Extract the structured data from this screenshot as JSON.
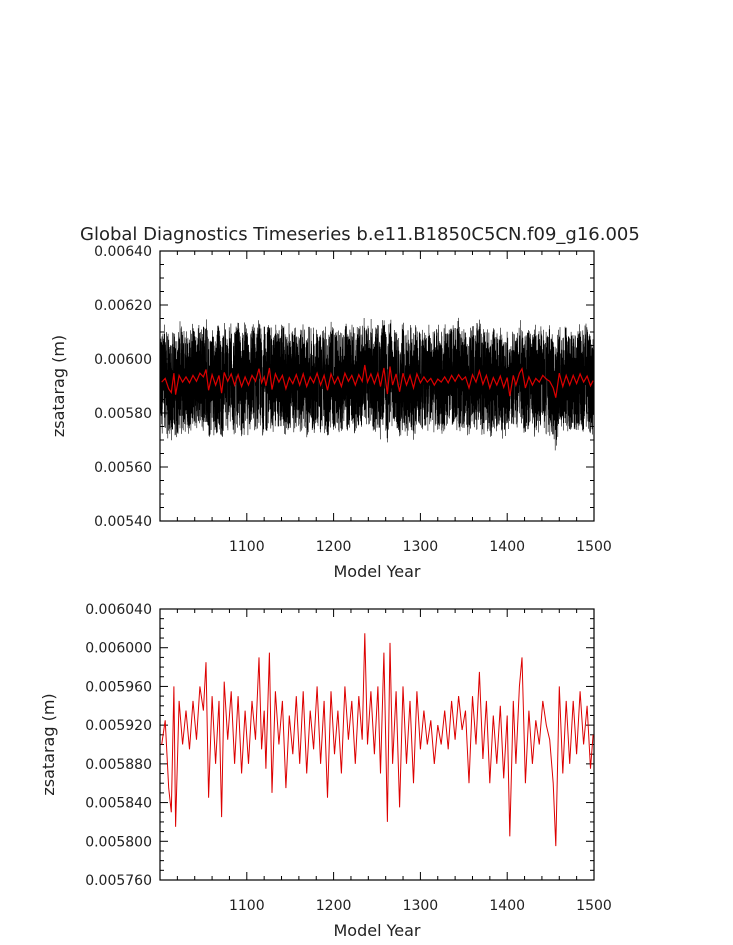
{
  "title": "Global Diagnostics Timeseries b.e11.B1850C5CN.f09_g16.005",
  "colors": {
    "raw": "#000000",
    "smooth": "#dd0000",
    "frame": "#000000"
  },
  "chart_data": [
    {
      "type": "line",
      "title": "Global Diagnostics Timeseries b.e11.B1850C5CN.f09_g16.005",
      "xlabel": "Model Year",
      "ylabel": "zsatarag (m)",
      "xlim": [
        1000,
        1500
      ],
      "ylim": [
        0.0054,
        0.0064
      ],
      "xticks": [
        1100,
        1200,
        1300,
        1400,
        1500
      ],
      "xtick_labels": [
        "1100",
        "1200",
        "1300",
        "1400",
        "1500"
      ],
      "yticks": [
        0.0054,
        0.0056,
        0.0058,
        0.006,
        0.0062,
        0.0064
      ],
      "ytick_labels": [
        "0.00540",
        "0.00560",
        "0.00580",
        "0.00600",
        "0.00620",
        "0.00640"
      ],
      "series": [
        {
          "role": "monthly",
          "color": "#000000",
          "note": "dense black band roughly 0.00570 to 0.00615"
        },
        {
          "role": "annual",
          "color": "#dd0000",
          "source": "annual_x_y"
        }
      ]
    },
    {
      "type": "line",
      "title": "",
      "xlabel": "Model Year",
      "ylabel": "zsatarag (m)",
      "xlim": [
        1000,
        1500
      ],
      "ylim": [
        0.00576,
        0.00604
      ],
      "xticks": [
        1100,
        1200,
        1300,
        1400,
        1500
      ],
      "xtick_labels": [
        "1100",
        "1200",
        "1300",
        "1400",
        "1500"
      ],
      "yticks": [
        0.00576,
        0.0058,
        0.00584,
        0.00588,
        0.00592,
        0.00596,
        0.006,
        0.00604
      ],
      "ytick_labels": [
        "0.005760",
        "0.005800",
        "0.005840",
        "0.005880",
        "0.005920",
        "0.005960",
        "0.006000",
        "0.006040"
      ],
      "series": [
        {
          "role": "annual",
          "color": "#dd0000",
          "source": "annual_x_y"
        }
      ]
    }
  ],
  "annual_x_y": [
    [
      1002,
      0.0059
    ],
    [
      1006,
      0.005925
    ],
    [
      1010,
      0.005855
    ],
    [
      1013,
      0.00583
    ],
    [
      1016,
      0.00596
    ],
    [
      1018,
      0.005815
    ],
    [
      1022,
      0.005945
    ],
    [
      1026,
      0.0059
    ],
    [
      1030,
      0.005935
    ],
    [
      1034,
      0.005895
    ],
    [
      1038,
      0.005945
    ],
    [
      1042,
      0.005905
    ],
    [
      1046,
      0.00596
    ],
    [
      1050,
      0.005935
    ],
    [
      1053,
      0.005985
    ],
    [
      1056,
      0.005845
    ],
    [
      1060,
      0.00595
    ],
    [
      1064,
      0.00588
    ],
    [
      1068,
      0.005945
    ],
    [
      1071,
      0.005825
    ],
    [
      1074,
      0.005965
    ],
    [
      1078,
      0.005905
    ],
    [
      1082,
      0.005955
    ],
    [
      1086,
      0.00588
    ],
    [
      1090,
      0.00595
    ],
    [
      1094,
      0.00587
    ],
    [
      1098,
      0.005935
    ],
    [
      1102,
      0.00588
    ],
    [
      1106,
      0.005945
    ],
    [
      1110,
      0.005905
    ],
    [
      1114,
      0.00599
    ],
    [
      1117,
      0.005895
    ],
    [
      1120,
      0.005935
    ],
    [
      1122,
      0.005875
    ],
    [
      1126,
      0.005995
    ],
    [
      1129,
      0.00585
    ],
    [
      1133,
      0.005955
    ],
    [
      1137,
      0.0059
    ],
    [
      1141,
      0.005945
    ],
    [
      1145,
      0.005855
    ],
    [
      1149,
      0.00593
    ],
    [
      1153,
      0.00589
    ],
    [
      1157,
      0.00595
    ],
    [
      1161,
      0.00588
    ],
    [
      1165,
      0.005955
    ],
    [
      1169,
      0.00587
    ],
    [
      1173,
      0.005935
    ],
    [
      1177,
      0.005895
    ],
    [
      1181,
      0.00596
    ],
    [
      1185,
      0.00588
    ],
    [
      1189,
      0.005945
    ],
    [
      1193,
      0.005845
    ],
    [
      1197,
      0.005955
    ],
    [
      1201,
      0.00589
    ],
    [
      1205,
      0.005935
    ],
    [
      1209,
      0.00587
    ],
    [
      1213,
      0.00596
    ],
    [
      1217,
      0.005905
    ],
    [
      1221,
      0.005945
    ],
    [
      1225,
      0.00588
    ],
    [
      1229,
      0.00595
    ],
    [
      1233,
      0.005905
    ],
    [
      1236,
      0.006015
    ],
    [
      1239,
      0.0059
    ],
    [
      1243,
      0.005955
    ],
    [
      1247,
      0.00589
    ],
    [
      1251,
      0.00596
    ],
    [
      1254,
      0.00587
    ],
    [
      1258,
      0.005995
    ],
    [
      1262,
      0.00582
    ],
    [
      1265,
      0.006005
    ],
    [
      1268,
      0.00588
    ],
    [
      1272,
      0.005955
    ],
    [
      1276,
      0.005835
    ],
    [
      1280,
      0.00596
    ],
    [
      1284,
      0.00588
    ],
    [
      1288,
      0.005945
    ],
    [
      1292,
      0.00586
    ],
    [
      1296,
      0.005955
    ],
    [
      1300,
      0.005895
    ],
    [
      1304,
      0.005935
    ],
    [
      1308,
      0.0059
    ],
    [
      1312,
      0.005925
    ],
    [
      1316,
      0.00588
    ],
    [
      1320,
      0.00592
    ],
    [
      1324,
      0.0059
    ],
    [
      1328,
      0.005935
    ],
    [
      1332,
      0.005895
    ],
    [
      1336,
      0.005945
    ],
    [
      1340,
      0.005905
    ],
    [
      1344,
      0.00595
    ],
    [
      1348,
      0.005915
    ],
    [
      1352,
      0.005935
    ],
    [
      1356,
      0.00586
    ],
    [
      1360,
      0.00595
    ],
    [
      1364,
      0.0059
    ],
    [
      1368,
      0.005975
    ],
    [
      1372,
      0.005885
    ],
    [
      1376,
      0.005945
    ],
    [
      1380,
      0.00586
    ],
    [
      1384,
      0.00593
    ],
    [
      1388,
      0.00588
    ],
    [
      1392,
      0.00594
    ],
    [
      1396,
      0.005865
    ],
    [
      1400,
      0.00593
    ],
    [
      1403,
      0.005805
    ],
    [
      1407,
      0.005945
    ],
    [
      1410,
      0.00588
    ],
    [
      1414,
      0.00596
    ],
    [
      1417,
      0.00599
    ],
    [
      1421,
      0.00586
    ],
    [
      1425,
      0.005935
    ],
    [
      1429,
      0.00588
    ],
    [
      1433,
      0.005925
    ],
    [
      1437,
      0.0059
    ],
    [
      1441,
      0.005945
    ],
    [
      1445,
      0.00592
    ],
    [
      1449,
      0.005905
    ],
    [
      1453,
      0.00586
    ],
    [
      1456,
      0.005795
    ],
    [
      1460,
      0.00596
    ],
    [
      1464,
      0.00587
    ],
    [
      1468,
      0.005945
    ],
    [
      1472,
      0.00588
    ],
    [
      1476,
      0.005945
    ],
    [
      1480,
      0.00589
    ],
    [
      1484,
      0.005955
    ],
    [
      1488,
      0.0059
    ],
    [
      1492,
      0.00594
    ],
    [
      1496,
      0.005875
    ],
    [
      1499,
      0.00591
    ]
  ]
}
